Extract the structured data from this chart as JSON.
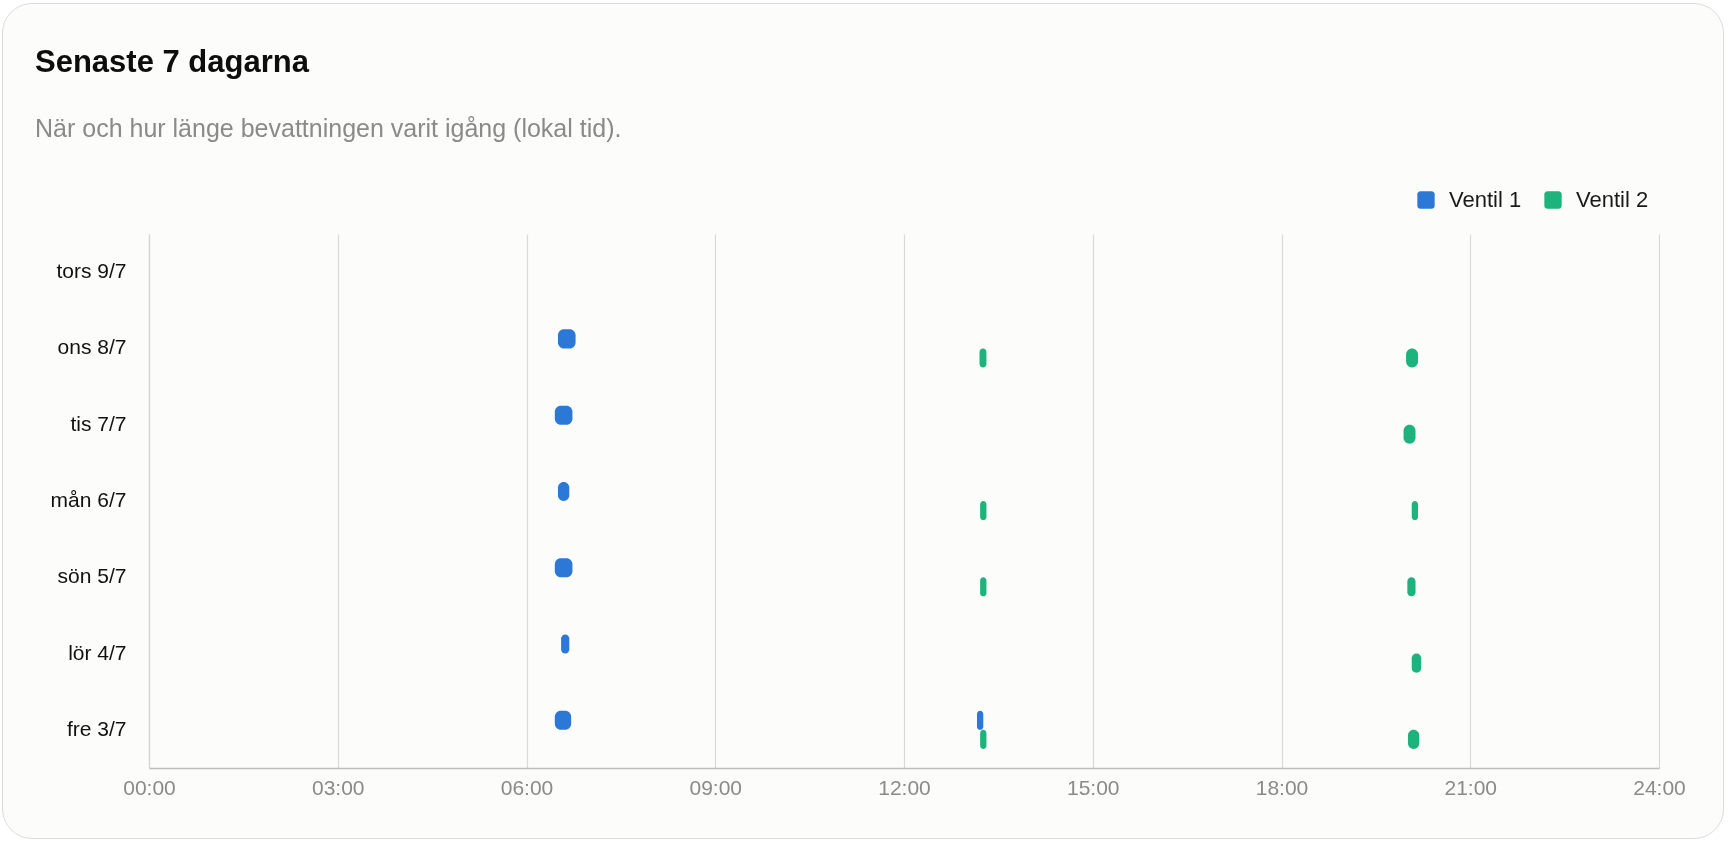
{
  "chart_data": {
    "type": "bar",
    "orientation": "horizontal",
    "title": "Senaste 7 dagarna",
    "subtitle": "När och hur länge bevattningen varit igång (lokal tid).",
    "categories": [
      "tors 9/7",
      "ons 8/7",
      "tis 7/7",
      "mån 6/7",
      "sön 5/7",
      "lör 4/7",
      "fre 3/7"
    ],
    "xlim": [
      0,
      24
    ],
    "xticks": [
      {
        "value": 0,
        "label": "00:00"
      },
      {
        "value": 3,
        "label": "03:00"
      },
      {
        "value": 6,
        "label": "06:00"
      },
      {
        "value": 9,
        "label": "09:00"
      },
      {
        "value": 12,
        "label": "12:00"
      },
      {
        "value": 15,
        "label": "15:00"
      },
      {
        "value": 18,
        "label": "18:00"
      },
      {
        "value": 21,
        "label": "21:00"
      },
      {
        "value": 24,
        "label": "24:00"
      }
    ],
    "grid": "x",
    "legend": "top right",
    "series": [
      {
        "name": "Ventil 1",
        "color": "#2b78d6",
        "base": [
          null,
          6.5,
          6.45,
          6.5,
          6.45,
          6.55,
          6.45
        ],
        "values": [
          null,
          0.28,
          0.28,
          0.18,
          0.28,
          0.13,
          0.26
        ]
      },
      {
        "color": "#2b78d6",
        "base": [
          null,
          null,
          null,
          null,
          null,
          null,
          13.16
        ],
        "values": [
          null,
          null,
          null,
          null,
          null,
          null,
          0.1
        ]
      },
      {
        "name": "Ventil 2",
        "color": "#1db37c",
        "base": [
          null,
          13.2,
          null,
          13.21,
          13.21,
          null,
          13.21
        ],
        "values": [
          null,
          0.11,
          null,
          0.1,
          0.1,
          null,
          0.1
        ]
      },
      {
        "color": "#1db37c",
        "base": [
          null,
          19.98,
          19.94,
          20.07,
          20.0,
          20.07,
          20.01
        ],
        "values": [
          null,
          0.19,
          0.19,
          0.1,
          0.13,
          0.15,
          0.18
        ]
      }
    ]
  }
}
